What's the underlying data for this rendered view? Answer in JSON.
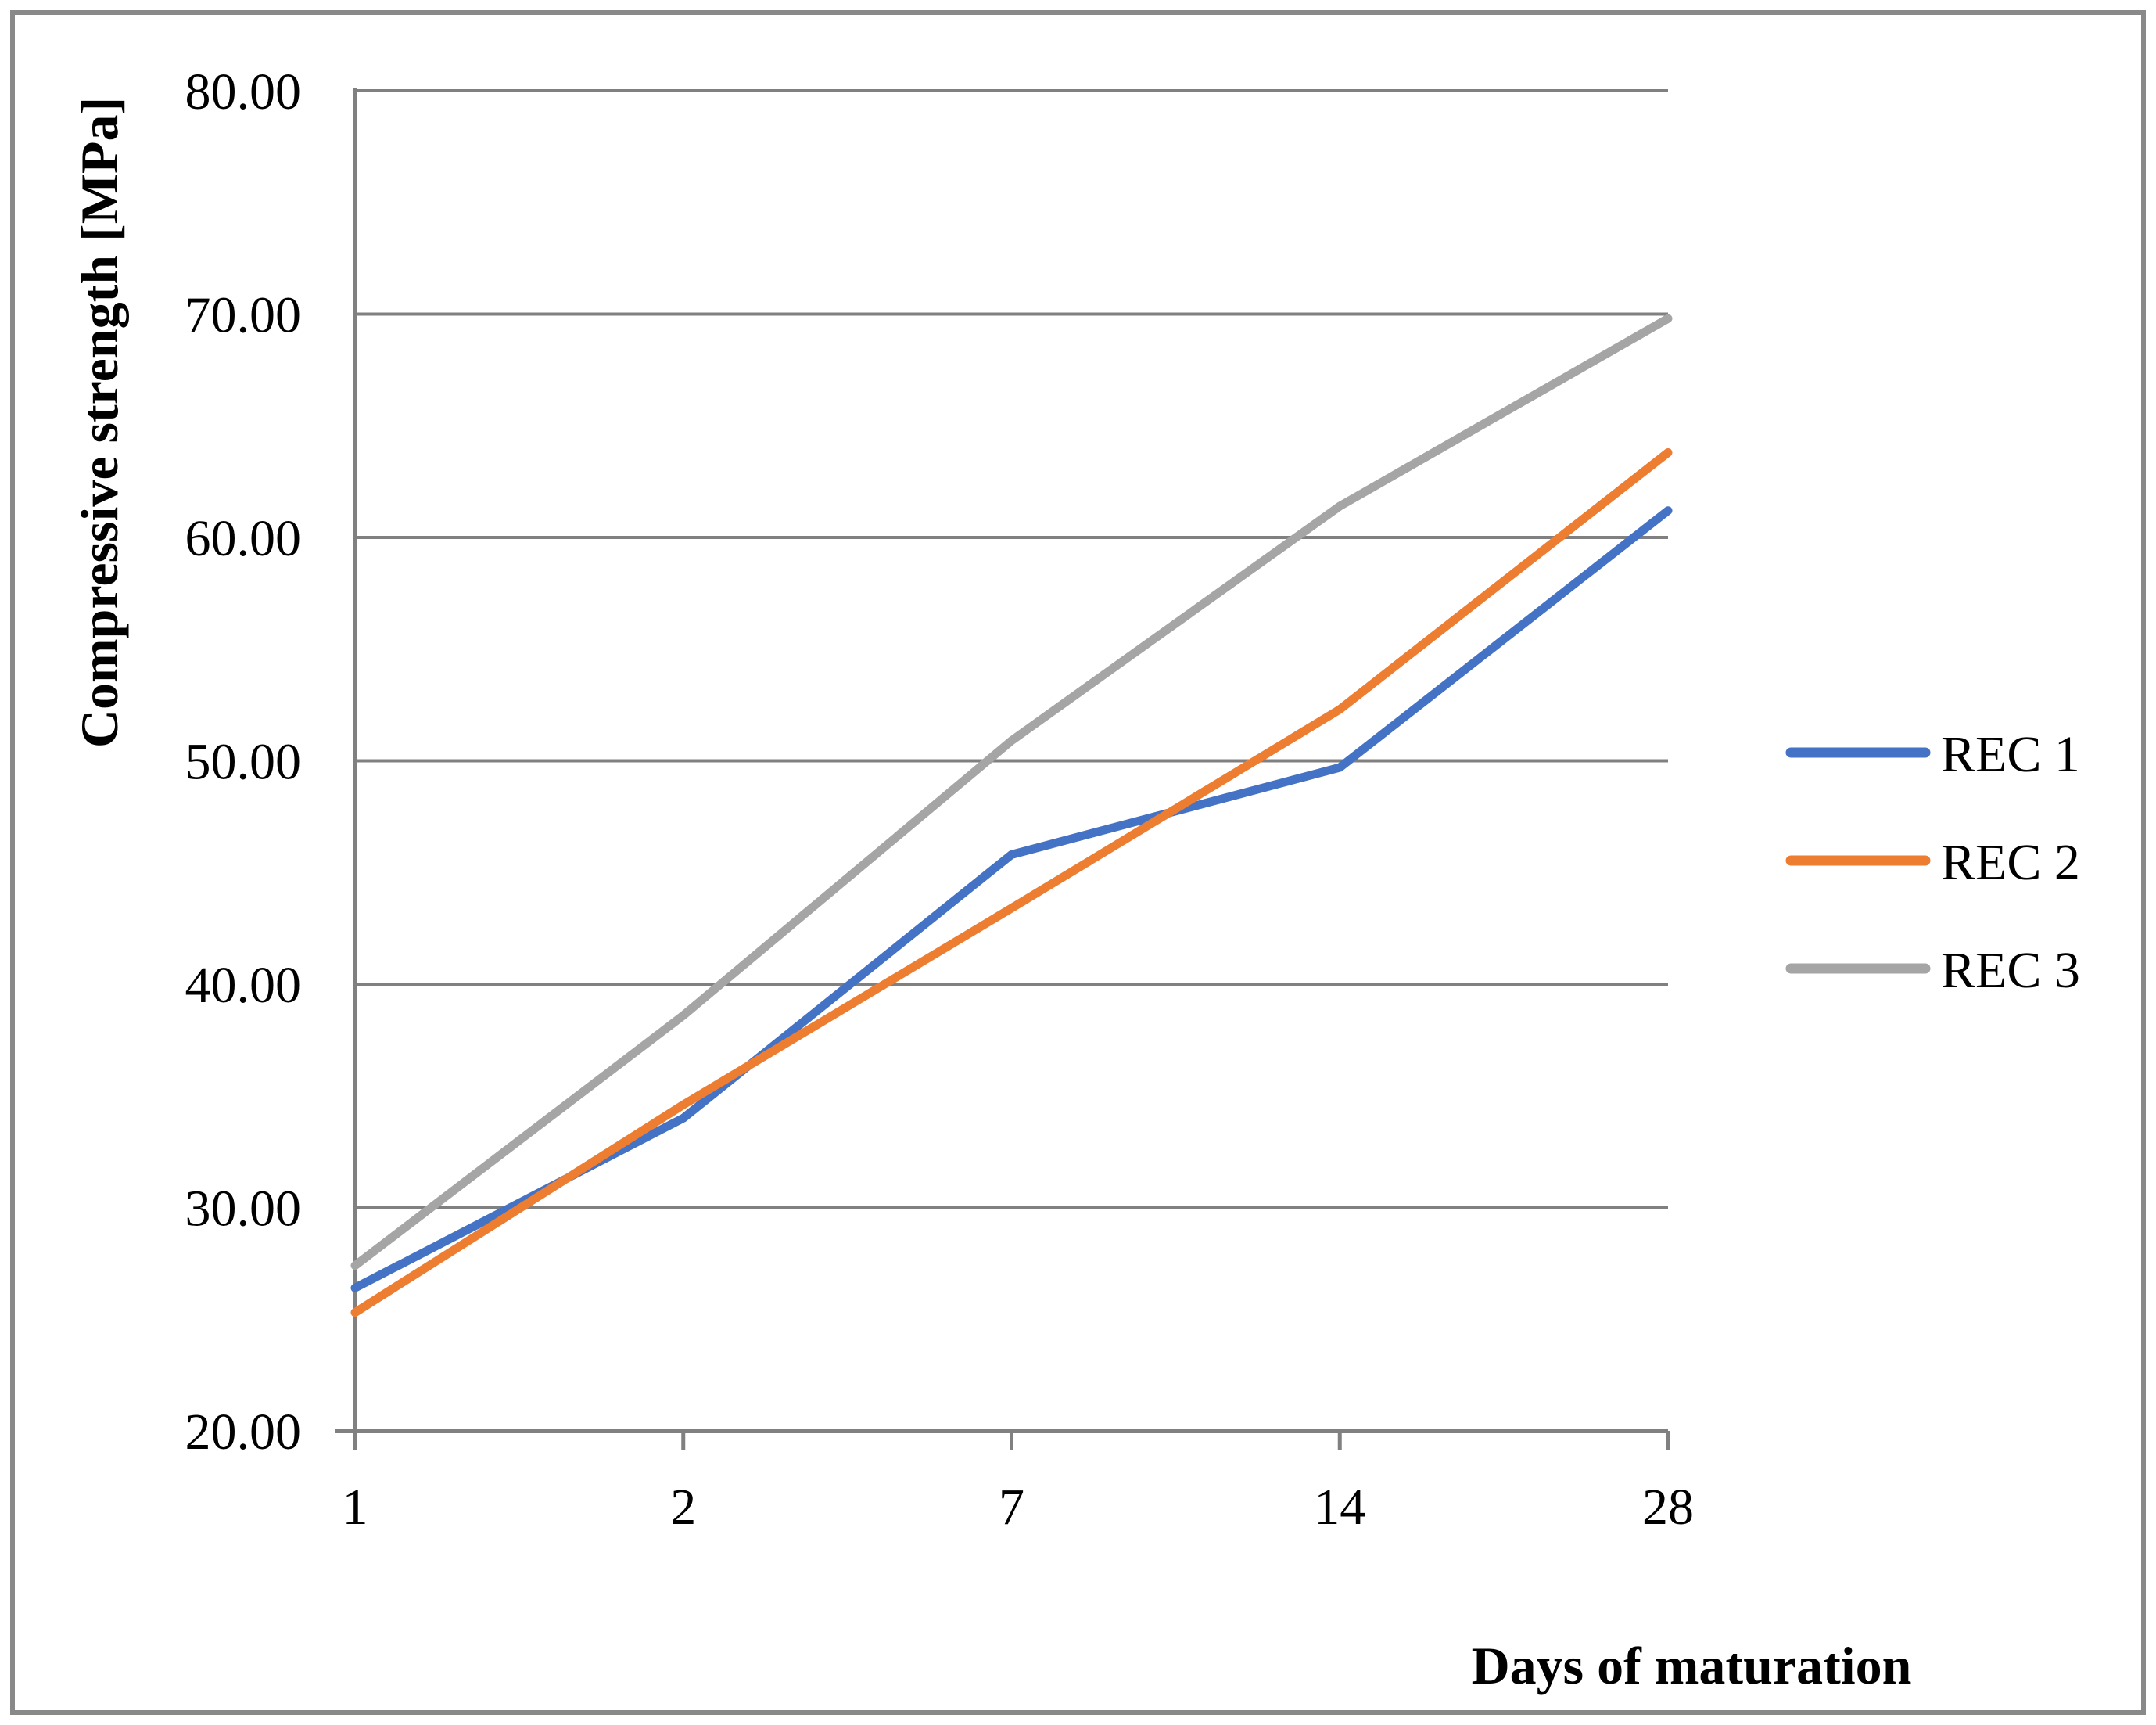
{
  "chart_data": {
    "type": "line",
    "title": "",
    "xlabel": "Days of maturation",
    "ylabel": "Compressive strength [MPa]",
    "categories": [
      1,
      2,
      7,
      14,
      28
    ],
    "xticklabels": [
      "1",
      "2",
      "7",
      "14",
      "28"
    ],
    "yticklabels": [
      "20.00",
      "30.00",
      "40.00",
      "50.00",
      "60.00",
      "70.00",
      "80.00"
    ],
    "series": [
      {
        "name": "REC 1",
        "color": "#4472C4",
        "values": [
          26.4,
          34.0,
          45.8,
          49.7,
          61.2
        ]
      },
      {
        "name": "REC 2",
        "color": "#ED7D31",
        "values": [
          25.3,
          34.6,
          43.4,
          52.3,
          63.8
        ]
      },
      {
        "name": "REC 3",
        "color": "#A5A5A5",
        "values": [
          27.4,
          38.6,
          50.9,
          61.4,
          69.8
        ]
      }
    ],
    "ylim": [
      20,
      80
    ],
    "ytick_step": 10,
    "grid": true,
    "legend_position": "right",
    "axis_color": "#808080",
    "gridline_color": "#808080",
    "frame_color": "#898989",
    "x_axis_type": "categorical-even-spacing"
  }
}
